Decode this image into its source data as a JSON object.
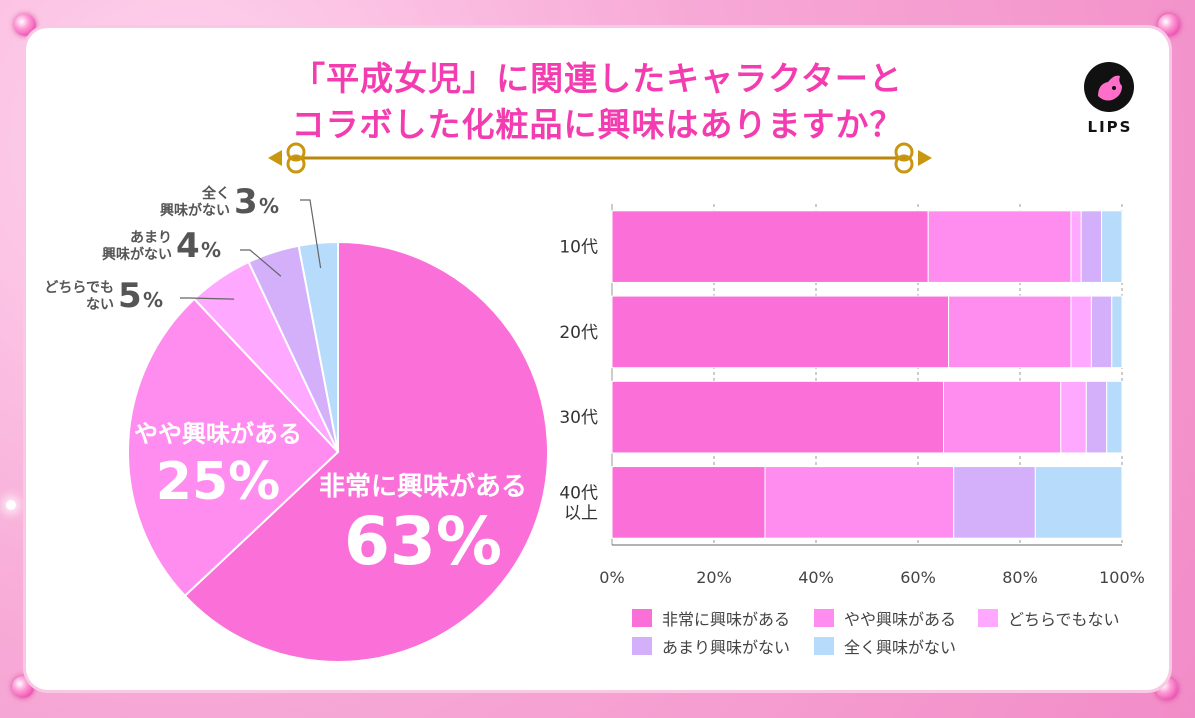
{
  "title": {
    "line1": "「平成女児」に関連したキャラクターと",
    "line2": "コラボした化粧品に興味はありますか？"
  },
  "logo": {
    "text": "LIPS"
  },
  "colors": {
    "very": "#fb6fd8",
    "somewhat": "#ff8df0",
    "neutral": "#ffa8ff",
    "notmuch": "#d4b0fb",
    "notatall": "#b6dbfb"
  },
  "pie_labels": {
    "very_label": "非常に興味がある",
    "very_value": "63%",
    "somewhat_label": "やや興味がある",
    "somewhat_value": "25%",
    "neutral_label_l1": "どちらでも",
    "neutral_label_l2": "ない",
    "neutral_value": "5",
    "notmuch_label_l1": "あまり",
    "notmuch_label_l2": "興味がない",
    "notmuch_value": "4",
    "notatall_label_l1": "全く",
    "notatall_label_l2": "興味がない",
    "notatall_value": "3",
    "percent_sign": "%"
  },
  "chart_data": [
    {
      "type": "pie",
      "categories": [
        "非常に興味がある",
        "やや興味がある",
        "どちらでもない",
        "あまり興味がない",
        "全く興味がない"
      ],
      "values": [
        63,
        25,
        5,
        4,
        3
      ]
    },
    {
      "type": "bar",
      "orientation": "horizontal-stacked",
      "categories": [
        "10代",
        "20代",
        "30代",
        "40代\n以上"
      ],
      "xlim": [
        0,
        100
      ],
      "xticks": [
        "0%",
        "20%",
        "40%",
        "60%",
        "80%",
        "100%"
      ],
      "grid": true,
      "legend_position": "bottom",
      "series": [
        {
          "name": "非常に興味がある",
          "values": [
            62,
            66,
            65,
            30
          ]
        },
        {
          "name": "やや興味がある",
          "values": [
            28,
            24,
            23,
            37
          ]
        },
        {
          "name": "どちらでもない",
          "values": [
            2,
            4,
            5,
            0
          ]
        },
        {
          "name": "あまり興味がない",
          "values": [
            4,
            4,
            4,
            16
          ]
        },
        {
          "name": "全く興味がない",
          "values": [
            4,
            2,
            3,
            17
          ]
        }
      ]
    }
  ]
}
